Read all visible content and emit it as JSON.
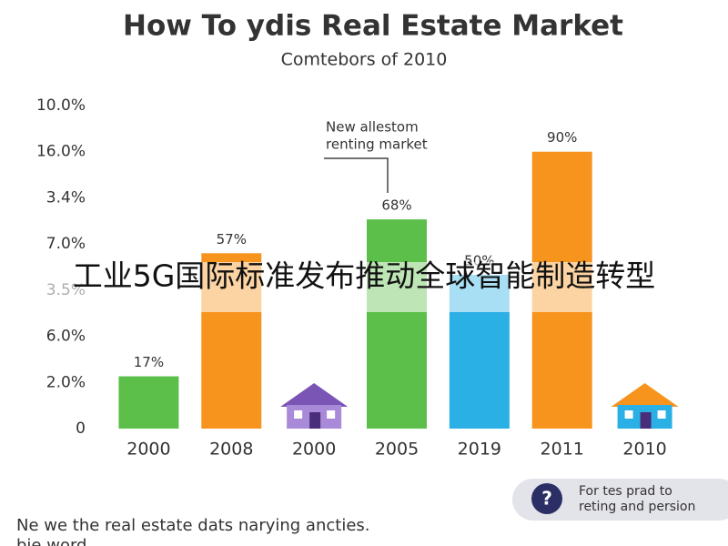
{
  "chart_data": {
    "type": "bar",
    "title": "How To ydis Real Estate Market",
    "subtitle": "Comtebors of 2010",
    "categories": [
      "2000",
      "2008",
      "2000",
      "2005",
      "2019",
      "2011",
      "2010"
    ],
    "values": [
      17,
      57,
      null,
      68,
      50,
      90,
      null
    ],
    "value_labels": [
      "17%",
      "57%",
      null,
      "68%",
      "50%",
      "90%",
      null
    ],
    "colors": [
      "#5cbf4a",
      "#f7941d",
      "#7b55b5",
      "#5cbf4a",
      "#2ab0e4",
      "#f7941d",
      "#f7941d"
    ],
    "ylim": [
      0,
      105
    ],
    "yticks": [
      0,
      {
        "value": 15,
        "label": "2.0%"
      },
      {
        "value": 30,
        "label": "6.0%"
      },
      {
        "value": 45,
        "label": "3.5%"
      },
      {
        "value": 60,
        "label": "7.0%"
      },
      {
        "value": 75,
        "label": "3.4%"
      },
      {
        "value": 90,
        "label": "16.0%"
      },
      {
        "value": 105,
        "label": "10.0%"
      }
    ],
    "annotation": [
      "New allestom",
      "renting market"
    ]
  },
  "overlay_caption": "工业5G国际标准发布推动全球智能制造转型",
  "footer": {
    "text": "Ne we the real estate dats narying ancties.",
    "text_cut": "bie word"
  },
  "help_button": {
    "icon": "?",
    "text": [
      "For tes prad to",
      "reting and persion"
    ]
  }
}
